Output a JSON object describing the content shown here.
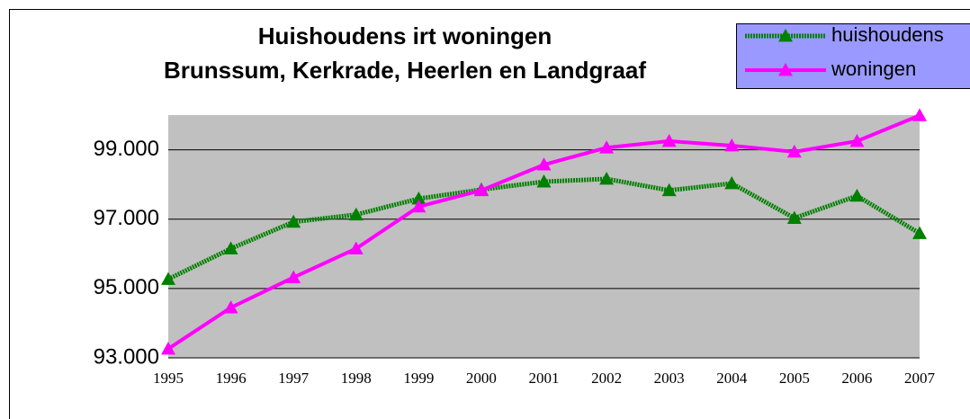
{
  "chart_data": {
    "type": "line",
    "title": "Huishoudens irt woningen",
    "subtitle": "Brunssum, Kerkrade, Heerlen en Landgraaf",
    "categories": [
      "1995",
      "1996",
      "1997",
      "1998",
      "1999",
      "2000",
      "2001",
      "2002",
      "2003",
      "2004",
      "2005",
      "2006",
      "2007"
    ],
    "series": [
      {
        "name": "huishoudens",
        "color": "#008000",
        "values": [
          95270,
          96150,
          96920,
          97130,
          97590,
          97850,
          98080,
          98160,
          97830,
          98030,
          97030,
          97670,
          96590
        ]
      },
      {
        "name": "woningen",
        "color": "#ff00ff",
        "values": [
          93260,
          94450,
          95320,
          96150,
          97360,
          97830,
          98570,
          99060,
          99250,
          99120,
          98940,
          99250,
          99990
        ]
      }
    ],
    "ylim": [
      93000,
      100000
    ],
    "yticks": [
      {
        "value": 93000,
        "label": "93.000"
      },
      {
        "value": 95000,
        "label": "95.000"
      },
      {
        "value": 97000,
        "label": "97.000"
      },
      {
        "value": 99000,
        "label": "99.000"
      }
    ],
    "grid": true,
    "legend": "upper right",
    "marker": "triangle"
  }
}
